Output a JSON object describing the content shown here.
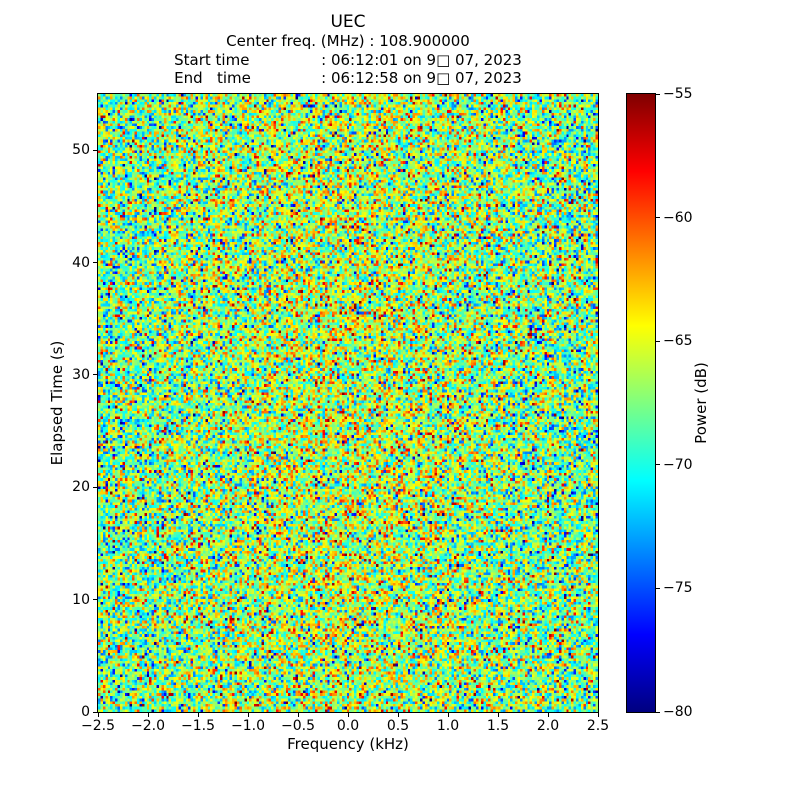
{
  "figure": {
    "background": "#ffffff"
  },
  "header": {
    "title": "UEC",
    "center_freq_line": "Center freq. (MHz) : 108.900000",
    "info_rows": [
      {
        "label": "Start time",
        "value": ": 06:12:01 on 9□ 07, 2023"
      },
      {
        "label": "End   time",
        "value": ": 06:12:58 on 9□ 07, 2023"
      }
    ]
  },
  "chart_data": {
    "type": "heatmap",
    "title": "UEC",
    "subtitle_lines": [
      "Center freq. (MHz) : 108.900000",
      "Start time          : 06:12:01 on 9□ 07, 2023",
      "End   time          : 06:12:58 on 9□ 07, 2023"
    ],
    "xlabel": "Frequency (kHz)",
    "ylabel": "Elapsed Time (s)",
    "colorbar_label": "Power (dB)",
    "x_range": [
      -2.5,
      2.5
    ],
    "y_range": [
      0,
      55
    ],
    "color_range_db": [
      -80,
      -55
    ],
    "grid": false,
    "x_ticks": [
      {
        "value": -2.5,
        "label": "−2.5"
      },
      {
        "value": -2.0,
        "label": "−2.0"
      },
      {
        "value": -1.5,
        "label": "−1.5"
      },
      {
        "value": -1.0,
        "label": "−1.0"
      },
      {
        "value": -0.5,
        "label": "−0.5"
      },
      {
        "value": 0.0,
        "label": "0.0"
      },
      {
        "value": 0.5,
        "label": "0.5"
      },
      {
        "value": 1.0,
        "label": "1.0"
      },
      {
        "value": 1.5,
        "label": "1.5"
      },
      {
        "value": 2.0,
        "label": "2.0"
      },
      {
        "value": 2.5,
        "label": "2.5"
      }
    ],
    "y_ticks": [
      {
        "value": 0,
        "label": "0"
      },
      {
        "value": 10,
        "label": "10"
      },
      {
        "value": 20,
        "label": "20"
      },
      {
        "value": 30,
        "label": "30"
      },
      {
        "value": 40,
        "label": "40"
      },
      {
        "value": 50,
        "label": "50"
      }
    ],
    "colorbar_ticks": [
      {
        "value": -55,
        "label": "−55"
      },
      {
        "value": -60,
        "label": "−60"
      },
      {
        "value": -65,
        "label": "−65"
      },
      {
        "value": -70,
        "label": "−70"
      },
      {
        "value": -75,
        "label": "−75"
      },
      {
        "value": -80,
        "label": "−80"
      }
    ],
    "colormap": "jet",
    "colormap_stops": [
      {
        "t": 0.0,
        "color": "#000080"
      },
      {
        "t": 0.125,
        "color": "#0000ff"
      },
      {
        "t": 0.375,
        "color": "#00ffff"
      },
      {
        "t": 0.625,
        "color": "#ffff00"
      },
      {
        "t": 0.875,
        "color": "#ff0000"
      },
      {
        "t": 1.0,
        "color": "#800000"
      }
    ],
    "noise": {
      "description": "random broadband noise field; power in dB, slightly hotter near 0 kHz",
      "seed": 1337,
      "cols": 205,
      "rows": 230,
      "mean_db": -68.0,
      "std_db": 3.8,
      "center_boost_db": 1.9,
      "center_sigma_khz": 1.15,
      "outlier_frac": 0.07
    }
  }
}
